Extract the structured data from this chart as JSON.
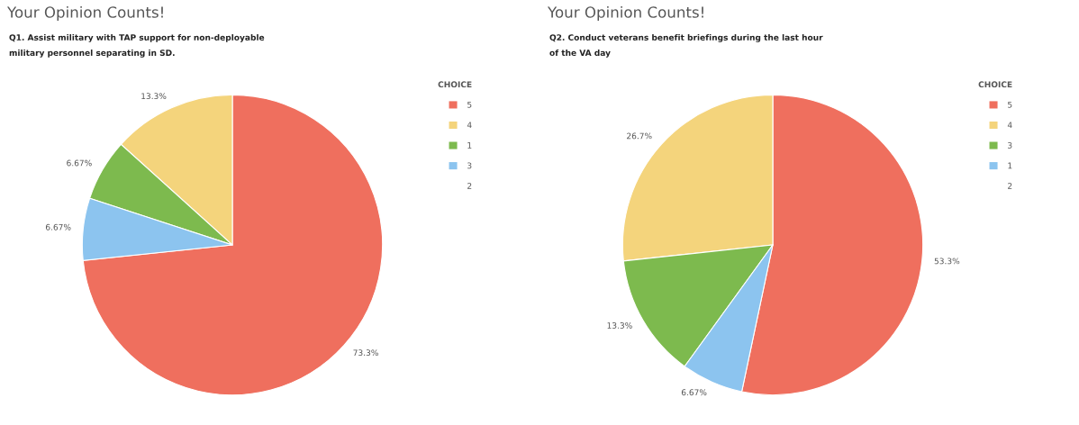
{
  "chart_data": [
    {
      "type": "pie",
      "title": "Your Opinion Counts!",
      "subtitle": "Q1. Assist military with TAP support for non-deployable\nmilitary personnel separating in SD.",
      "legend_title": "CHOICE",
      "legend": "right",
      "categories": [
        "5",
        "4",
        "1",
        "3",
        "2"
      ],
      "values": [
        73.3,
        13.3,
        6.67,
        6.67,
        0
      ],
      "colors": [
        "#ef6f5e",
        "#f4d47c",
        "#7dba4e",
        "#8cc4ef",
        null
      ],
      "value_labels": [
        "73.3%",
        "13.3%",
        "6.67%",
        "6.67%",
        null
      ]
    },
    {
      "type": "pie",
      "title": "Your Opinion Counts!",
      "subtitle": "Q2. Conduct veterans benefit briefings during the last hour\nof the VA day",
      "legend_title": "CHOICE",
      "legend": "right",
      "categories": [
        "5",
        "4",
        "3",
        "1",
        "2"
      ],
      "values": [
        53.3,
        26.7,
        13.3,
        6.67,
        0
      ],
      "colors": [
        "#ef6f5e",
        "#f4d47c",
        "#7dba4e",
        "#8cc4ef",
        null
      ],
      "value_labels": [
        "53.3%",
        "26.7%",
        "13.3%",
        "6.67%",
        null
      ]
    }
  ]
}
